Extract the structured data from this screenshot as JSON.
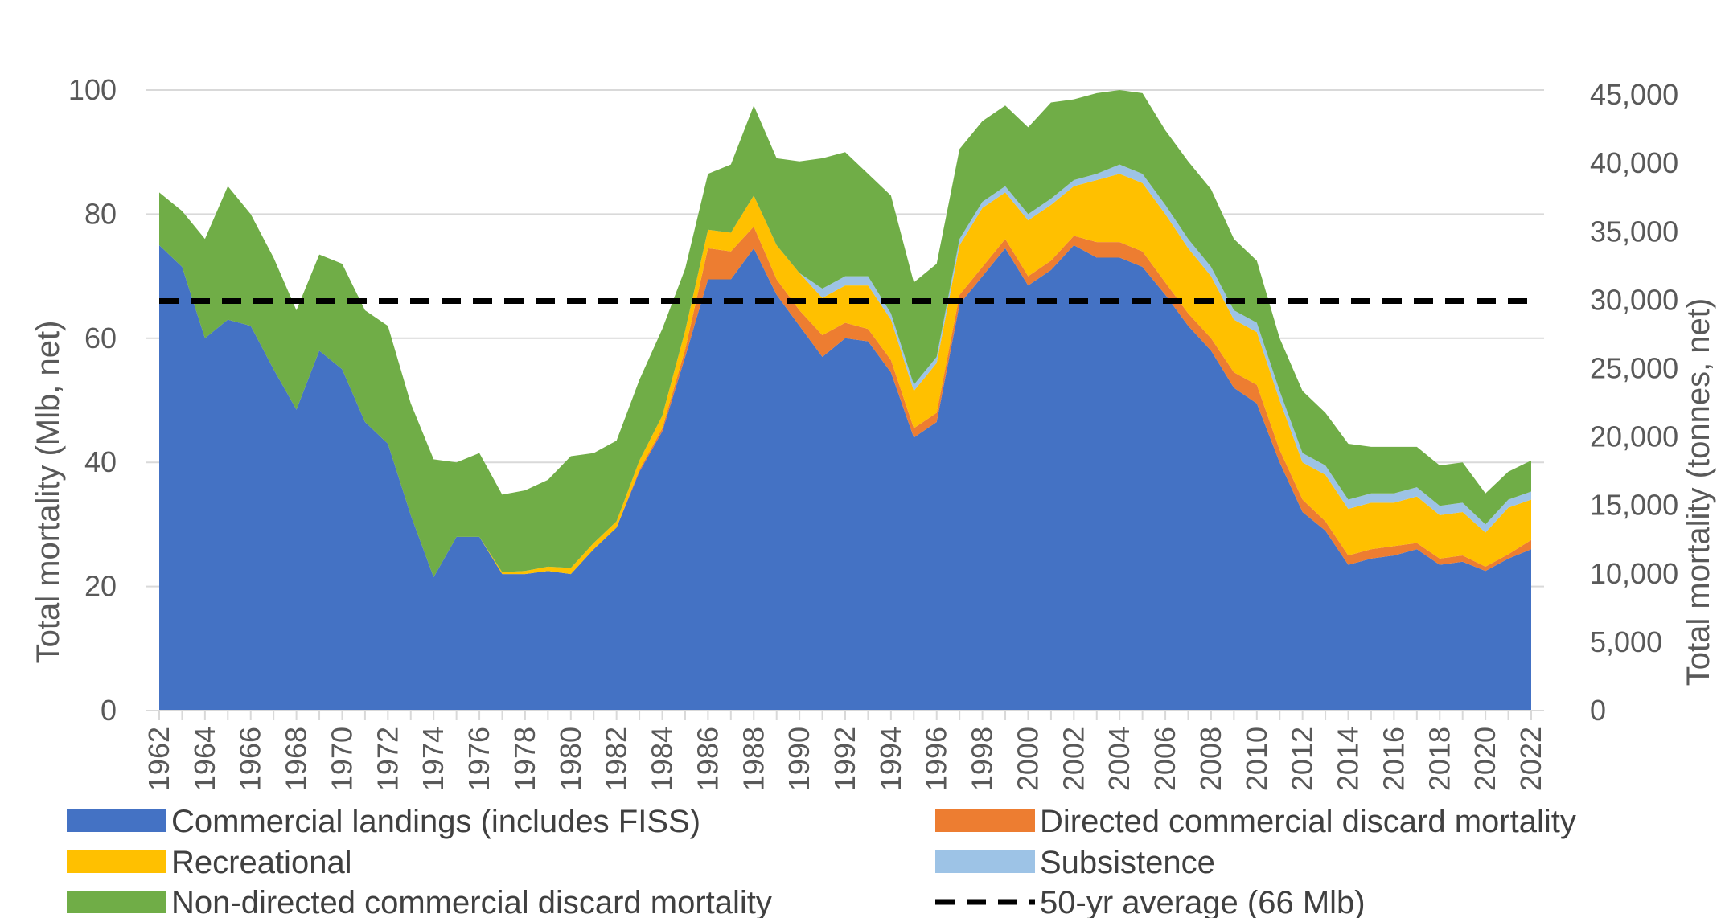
{
  "chart_data": {
    "type": "area",
    "stacked": true,
    "title": "",
    "xlabel": "",
    "ylabel": "Total mortality (Mlb, net)",
    "ylabel_right": "Total mortality (tonnes, net)",
    "ylim": [
      0,
      100
    ],
    "ylim_right": [
      0,
      45359
    ],
    "yticks": [
      0,
      20,
      40,
      60,
      80,
      100
    ],
    "yticks_right": [
      "0",
      "5,000",
      "10,000",
      "15,000",
      "20,000",
      "25,000",
      "30,000",
      "35,000",
      "40,000",
      "45,000"
    ],
    "yticks_right_values": [
      0,
      5000,
      10000,
      15000,
      20000,
      25000,
      30000,
      35000,
      40000,
      45000
    ],
    "x_start": 1962,
    "x_end": 2022,
    "xtick_labels": [
      "1962",
      "1964",
      "1966",
      "1968",
      "1970",
      "1972",
      "1974",
      "1976",
      "1978",
      "1980",
      "1982",
      "1984",
      "1986",
      "1988",
      "1990",
      "1992",
      "1994",
      "1996",
      "1998",
      "2000",
      "2002",
      "2004",
      "2006",
      "2008",
      "2010",
      "2012",
      "2014",
      "2016",
      "2018",
      "2020",
      "2022"
    ],
    "average_line": {
      "name": "50-yr average (66 Mlb)",
      "value": 66,
      "color": "#000000"
    },
    "series": [
      {
        "name": "Commercial landings (includes FISS)",
        "color": "#4472C4",
        "values": [
          75,
          71.5,
          60,
          63,
          62,
          55,
          48.5,
          58,
          55,
          46.5,
          43,
          31.5,
          21.5,
          28,
          28,
          22,
          22,
          22.5,
          22,
          26,
          29.5,
          38.5,
          45,
          57,
          69.5,
          69.5,
          74.5,
          67,
          62,
          57,
          60,
          59.5,
          54.5,
          44,
          46.5,
          65.5,
          70,
          74.5,
          68.5,
          71,
          75,
          73,
          73,
          71.5,
          67,
          62,
          58,
          52,
          49.5,
          40,
          32,
          29,
          23.5,
          24.5,
          25,
          26,
          23.5,
          24,
          22.5,
          24.5,
          26
        ]
      },
      {
        "name": "Directed commercial discard mortality",
        "color": "#ED7D31",
        "values": [
          0,
          0,
          0,
          0,
          0,
          0,
          0,
          0,
          0,
          0,
          0,
          0,
          0,
          0,
          0,
          0,
          0,
          0,
          0,
          0,
          0,
          0.3,
          0.5,
          1.2,
          5,
          4.5,
          3.5,
          2.5,
          2.5,
          3.5,
          2.5,
          2,
          2,
          1.5,
          1.5,
          1.5,
          1.5,
          1.5,
          1.5,
          1.5,
          1.5,
          2.5,
          2.5,
          2.5,
          2,
          2,
          2,
          2.5,
          3,
          2,
          2,
          1.5,
          1.5,
          1.5,
          1.5,
          1,
          1,
          1,
          0.7,
          0.7,
          1.5
        ]
      },
      {
        "name": "Recreational",
        "color": "#FFC000",
        "values": [
          0,
          0,
          0,
          0,
          0,
          0,
          0,
          0,
          0,
          0,
          0,
          0,
          0,
          0,
          0,
          0.3,
          0.5,
          0.7,
          1,
          1,
          1,
          1.5,
          2,
          3,
          3,
          3,
          5,
          5.5,
          6,
          6,
          6,
          7,
          6.5,
          6,
          8,
          8,
          9.5,
          7.5,
          9,
          9,
          8,
          10,
          11,
          11,
          11,
          10.5,
          10,
          8.5,
          8.5,
          8,
          6,
          7.5,
          7.5,
          7.5,
          7,
          7.5,
          7,
          7,
          5.5,
          7.5,
          6.5
        ]
      },
      {
        "name": "Subsistence",
        "color": "#9DC3E6",
        "values": [
          0,
          0,
          0,
          0,
          0,
          0,
          0,
          0,
          0,
          0,
          0,
          0,
          0,
          0,
          0,
          0,
          0,
          0,
          0,
          0,
          0,
          0,
          0,
          0,
          0,
          0,
          0,
          0,
          0,
          1.5,
          1.5,
          1.5,
          1,
          1,
          1,
          1,
          1,
          1,
          1,
          1,
          1,
          1,
          1.5,
          1.5,
          1.5,
          1.5,
          1.5,
          1.5,
          1.5,
          1.5,
          1.5,
          1.5,
          1.5,
          1.5,
          1.5,
          1.5,
          1.5,
          1.5,
          1.3,
          1.3,
          1.3
        ]
      },
      {
        "name": "Non-directed commercial discard mortality",
        "color": "#70AD47",
        "values": [
          8.5,
          9,
          16,
          21.5,
          18,
          18,
          16,
          15.5,
          17,
          18,
          19,
          18,
          19,
          12,
          13.5,
          12.5,
          13,
          14,
          18,
          14.5,
          13,
          13,
          14,
          10,
          9,
          11,
          14.5,
          14,
          18,
          21,
          20,
          16.5,
          19,
          16.5,
          15,
          14.5,
          13,
          13,
          14,
          15.5,
          13,
          13,
          12,
          13,
          12,
          12.5,
          12.5,
          11.5,
          10,
          8.5,
          10,
          8.5,
          9,
          7.5,
          7.5,
          6.5,
          6.5,
          6.5,
          5,
          4.5,
          5
        ]
      }
    ]
  }
}
